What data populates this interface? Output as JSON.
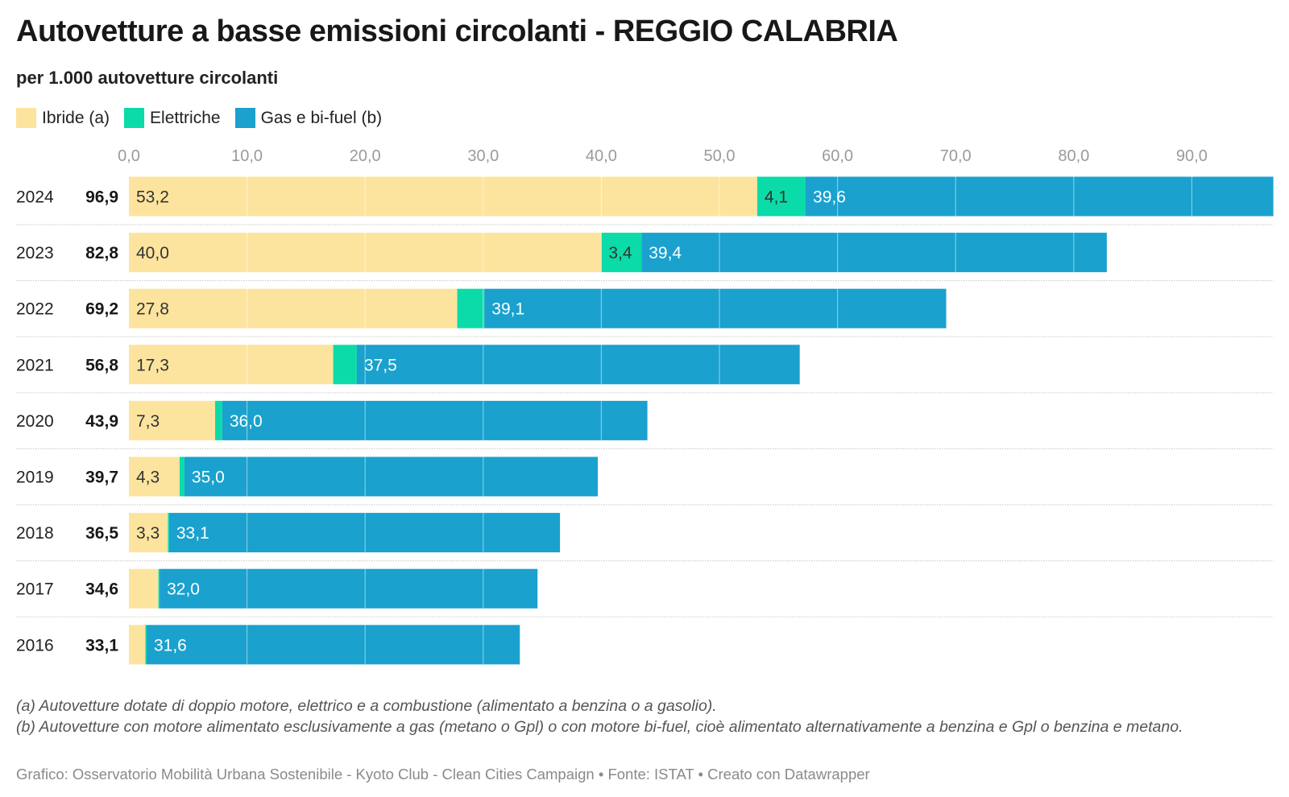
{
  "header": {
    "title": "Autovetture a basse emissioni circolanti - REGGIO CALABRIA",
    "subtitle": "per 1.000 autovetture circolanti"
  },
  "legend": [
    {
      "label": "Ibride (a)",
      "color": "#FDE49E"
    },
    {
      "label": "Elettriche",
      "color": "#0BDBA8"
    },
    {
      "label": "Gas e bi-fuel (b)",
      "color": "#1AA1CE"
    }
  ],
  "chart_data": {
    "type": "bar",
    "orientation": "horizontal",
    "stacked": true,
    "title": "Autovetture a basse emissioni circolanti - REGGIO CALABRIA",
    "subtitle": "per 1.000 autovetture circolanti",
    "xlabel": "",
    "ylabel": "",
    "xlim": [
      0,
      96.9
    ],
    "x_ticks": [
      0,
      10,
      20,
      30,
      40,
      50,
      60,
      70,
      80,
      90
    ],
    "x_tick_labels": [
      "0,0",
      "10,0",
      "20,0",
      "30,0",
      "40,0",
      "50,0",
      "60,0",
      "70,0",
      "80,0",
      "90,0"
    ],
    "grid": true,
    "legend_position": "top-left",
    "categories": [
      "2024",
      "2023",
      "2022",
      "2021",
      "2020",
      "2019",
      "2018",
      "2017",
      "2016"
    ],
    "totals": [
      96.9,
      82.8,
      69.2,
      56.8,
      43.9,
      39.7,
      36.5,
      34.6,
      33.1
    ],
    "total_labels": [
      "96,9",
      "82,8",
      "69,2",
      "56,8",
      "43,9",
      "39,7",
      "36,5",
      "34,6",
      "33,1"
    ],
    "series": [
      {
        "name": "Ibride (a)",
        "color": "#FDE49E",
        "label_color": "#333333",
        "values": [
          53.2,
          40.0,
          27.8,
          17.3,
          7.3,
          4.3,
          3.3,
          2.5,
          1.4
        ],
        "labels": [
          "53,2",
          "40,0",
          "27,8",
          "17,3",
          "7,3",
          "4,3",
          "3,3",
          "",
          ""
        ]
      },
      {
        "name": "Elettriche",
        "color": "#0BDBA8",
        "label_color": "#333333",
        "values": [
          4.1,
          3.4,
          2.3,
          2.0,
          0.6,
          0.4,
          0.1,
          0.1,
          0.1
        ],
        "labels": [
          "4,1",
          "3,4",
          "",
          "",
          "",
          "",
          "",
          "",
          ""
        ]
      },
      {
        "name": "Gas e bi-fuel (b)",
        "color": "#1AA1CE",
        "label_color": "#ffffff",
        "values": [
          39.6,
          39.4,
          39.1,
          37.5,
          36.0,
          35.0,
          33.1,
          32.0,
          31.6
        ],
        "labels": [
          "39,6",
          "39,4",
          "39,1",
          "37,5",
          "36,0",
          "35,0",
          "33,1",
          "32,0",
          "31,6"
        ]
      }
    ]
  },
  "notes": [
    "(a) Autovetture dotate di doppio motore, elettrico e a combustione (alimentato a benzina o a gasolio).",
    "(b) Autovetture con motore alimentato esclusivamente a gas (metano o Gpl) o con motore bi-fuel, cioè alimentato alternativamente a benzina e Gpl o benzina e metano."
  ],
  "credits": "Grafico: Osservatorio Mobilità Urbana Sostenibile - Kyoto Club - Clean Cities Campaign • Fonte: ISTAT • Creato con Datawrapper"
}
